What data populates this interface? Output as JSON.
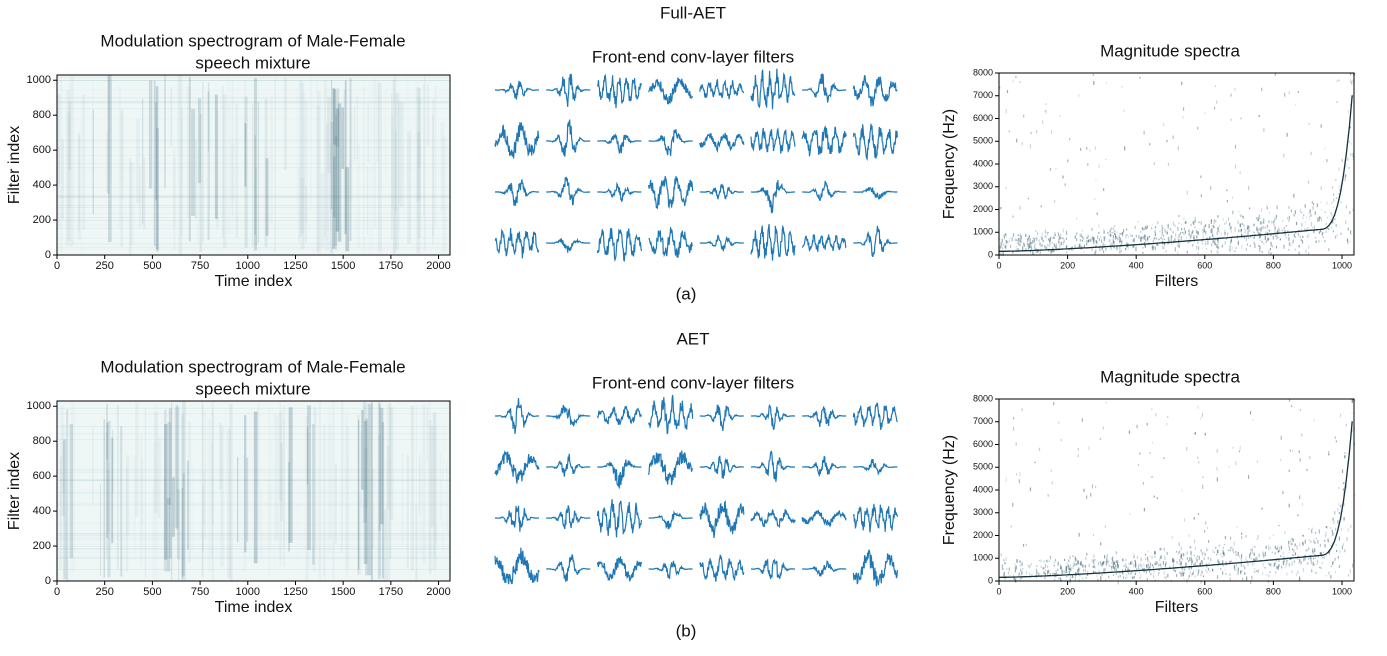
{
  "rows": [
    {
      "title": "Full-AET",
      "caption": "(a)",
      "spectrogram": {
        "title_lines": [
          "Modulation spectrogram of Male-Female",
          "speech mixture"
        ],
        "xlabel": "Time index",
        "ylabel": "Filter index",
        "xlim": [
          0,
          2060
        ],
        "xticks": [
          0,
          250,
          500,
          750,
          1000,
          1250,
          1500,
          1750,
          2000
        ],
        "ylim": [
          0,
          1030
        ],
        "yticks": [
          0,
          200,
          400,
          600,
          800,
          1000
        ]
      },
      "filters": {
        "title": "Front-end conv-layer filters"
      },
      "spectra": {
        "title": "Magnitude spectra",
        "xlabel": "Filters",
        "ylabel": "Frequency (Hz)",
        "xlim": [
          0,
          1035
        ],
        "xticks": [
          0,
          200,
          400,
          600,
          800,
          1000
        ],
        "ylim": [
          0,
          8000
        ],
        "yticks": [
          0,
          1000,
          2000,
          3000,
          4000,
          5000,
          6000,
          7000,
          8000
        ]
      }
    },
    {
      "title": "AET",
      "caption": "(b)",
      "spectrogram": {
        "title_lines": [
          "Modulation spectrogram of Male-Female",
          "speech mixture"
        ],
        "xlabel": "Time index",
        "ylabel": "Filter index",
        "xlim": [
          0,
          2060
        ],
        "xticks": [
          0,
          250,
          500,
          750,
          1000,
          1250,
          1500,
          1750,
          2000
        ],
        "ylim": [
          0,
          1030
        ],
        "yticks": [
          0,
          200,
          400,
          600,
          800,
          1000
        ]
      },
      "filters": {
        "title": "Front-end conv-layer filters"
      },
      "spectra": {
        "title": "Magnitude spectra",
        "xlabel": "Filters",
        "ylabel": "Frequency (Hz)",
        "xlim": [
          0,
          1035
        ],
        "xticks": [
          0,
          200,
          400,
          600,
          800,
          1000
        ],
        "ylim": [
          0,
          8000
        ],
        "yticks": [
          0,
          1000,
          2000,
          3000,
          4000,
          5000,
          6000,
          7000,
          8000
        ]
      }
    }
  ]
}
